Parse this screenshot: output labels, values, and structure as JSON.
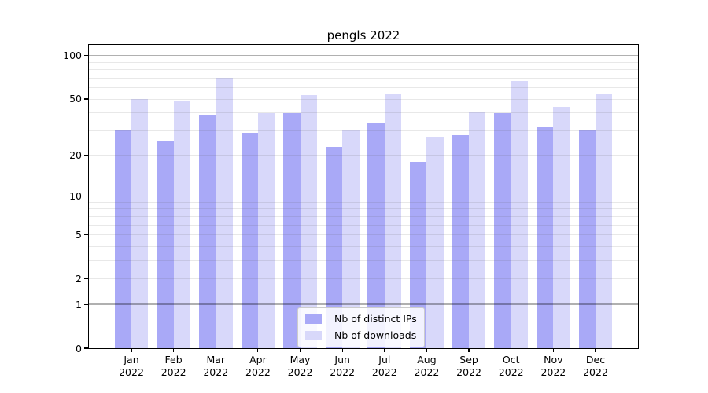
{
  "chart_data": {
    "type": "bar",
    "title": "pengls 2022",
    "categories": [
      {
        "month": "Jan",
        "year": "2022"
      },
      {
        "month": "Feb",
        "year": "2022"
      },
      {
        "month": "Mar",
        "year": "2022"
      },
      {
        "month": "Apr",
        "year": "2022"
      },
      {
        "month": "May",
        "year": "2022"
      },
      {
        "month": "Jun",
        "year": "2022"
      },
      {
        "month": "Jul",
        "year": "2022"
      },
      {
        "month": "Aug",
        "year": "2022"
      },
      {
        "month": "Sep",
        "year": "2022"
      },
      {
        "month": "Oct",
        "year": "2022"
      },
      {
        "month": "Nov",
        "year": "2022"
      },
      {
        "month": "Dec",
        "year": "2022"
      }
    ],
    "series": [
      {
        "name": "Nb of distinct IPs",
        "color": "#a9a9f7",
        "values": [
          30,
          25,
          39,
          29,
          40,
          23,
          34,
          18,
          28,
          40,
          32,
          30
        ]
      },
      {
        "name": "Nb of downloads",
        "color": "#d8d8fa",
        "values": [
          50,
          48,
          70,
          40,
          53,
          30,
          54,
          27,
          41,
          67,
          44,
          54
        ]
      }
    ],
    "y_axis": {
      "scale": "log10(1+y)",
      "tick_values": [
        0,
        1,
        2,
        5,
        10,
        20,
        50,
        100
      ],
      "major_gridlines": [
        1,
        10,
        100
      ],
      "minor_gridlines": [
        2,
        3,
        4,
        5,
        6,
        7,
        8,
        9,
        20,
        30,
        40,
        50,
        60,
        70,
        80,
        90
      ],
      "max": 119
    },
    "xlabel": "",
    "ylabel": "",
    "legend_position": "lower center",
    "grid": true,
    "colors": {
      "spine": "#000000",
      "major_grid": "#b0b0b0",
      "minor_grid": "#e7e7e7",
      "legend_border": "#cccccc"
    }
  }
}
